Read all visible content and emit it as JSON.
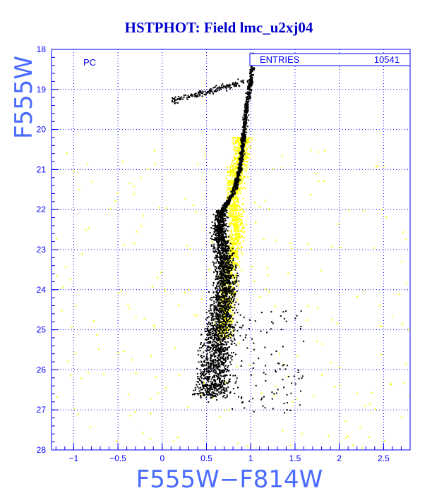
{
  "chart_data": {
    "type": "scatter",
    "title": "HSTPHOT: Field lmc_u2xj04",
    "xlabel": "F555W−F814W",
    "ylabel": "F555W",
    "xlim": [
      -1.25,
      2.8
    ],
    "ylim": [
      28,
      18
    ],
    "y_inverted": true,
    "x_ticks": [
      -1,
      -0.5,
      0,
      0.5,
      1,
      1.5,
      2,
      2.5
    ],
    "x_tick_labels": [
      "−1",
      "−0.5",
      "0",
      "0.5",
      "1",
      "1.5",
      "2",
      "2.5"
    ],
    "y_ticks": [
      18,
      19,
      20,
      21,
      22,
      23,
      24,
      25,
      26,
      27,
      28
    ],
    "y_tick_labels": [
      "18",
      "19",
      "20",
      "21",
      "22",
      "23",
      "24",
      "25",
      "26",
      "27",
      "28"
    ],
    "grid": true,
    "grid_style": "dotted",
    "annotation": "PC",
    "stats_box": {
      "label": "ENTRIES",
      "value": "10541",
      "position": "top-right"
    },
    "series": [
      {
        "color": "#000000",
        "description_points": "black sequence",
        "ridge": [
          [
            0.55,
            26.8
          ],
          [
            0.62,
            25.5
          ],
          [
            0.68,
            24.5
          ],
          [
            0.72,
            23.8
          ],
          [
            0.7,
            23.2
          ],
          [
            0.65,
            22.6
          ],
          [
            0.66,
            22.1
          ],
          [
            0.8,
            21.6
          ],
          [
            0.88,
            21.0
          ],
          [
            0.92,
            20.2
          ],
          [
            0.95,
            19.5
          ],
          [
            1.0,
            18.8
          ],
          [
            1.03,
            18.2
          ]
        ],
        "branch_clump": [
          [
            0.1,
            19.3
          ],
          [
            0.2,
            19.1
          ],
          [
            0.3,
            18.9
          ],
          [
            0.45,
            19.0
          ],
          [
            0.6,
            18.95
          ],
          [
            0.75,
            19.0
          ],
          [
            0.9,
            18.8
          ]
        ]
      },
      {
        "color": "#ffff00",
        "description_points": "yellow sequence",
        "ridge": [
          [
            0.7,
            25.0
          ],
          [
            0.75,
            24.0
          ],
          [
            0.8,
            23.0
          ],
          [
            0.85,
            22.5
          ],
          [
            0.8,
            21.8
          ],
          [
            0.85,
            21.0
          ],
          [
            0.9,
            20.5
          ]
        ]
      }
    ],
    "total_points": 10541
  },
  "colors": {
    "frame": "#0000ff",
    "grid": "#0000ff",
    "title": "#0000cc",
    "axis_label": "#4a6bff",
    "points_main": "#000000",
    "points_secondary": "#ffff00"
  }
}
